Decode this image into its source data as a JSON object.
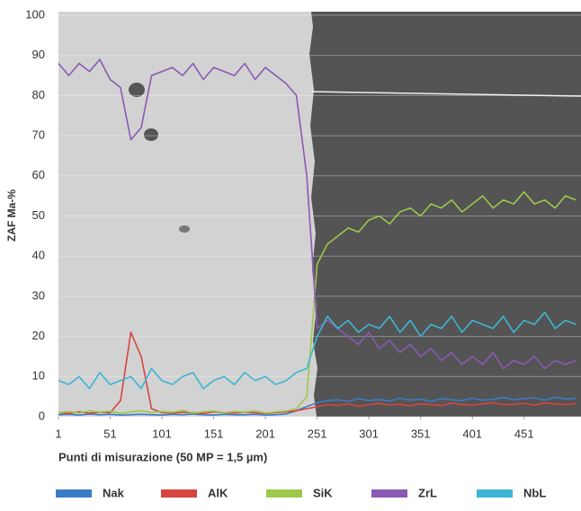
{
  "chart_data": {
    "type": "line",
    "x_label": "Punti di misurazione (50 MP = 1,5 µm)",
    "y_label": "ZAF Ma-%",
    "x": [
      1,
      11,
      21,
      31,
      41,
      51,
      61,
      71,
      81,
      91,
      101,
      111,
      121,
      131,
      141,
      151,
      161,
      171,
      181,
      191,
      201,
      211,
      221,
      231,
      241,
      251,
      261,
      271,
      281,
      291,
      301,
      311,
      321,
      331,
      341,
      351,
      361,
      371,
      381,
      391,
      401,
      411,
      421,
      431,
      441,
      451,
      461,
      471,
      481,
      491,
      501
    ],
    "xlim": [
      1,
      506
    ],
    "xticks": [
      1,
      51,
      101,
      151,
      201,
      251,
      301,
      351,
      401,
      451
    ],
    "ylim": [
      0,
      100
    ],
    "yticks": [
      0,
      10,
      20,
      30,
      40,
      50,
      60,
      70,
      80,
      90,
      100
    ],
    "grid": true,
    "legend": "bottom",
    "series": [
      {
        "name": "Nak",
        "color": "#3b7cc6",
        "values": [
          0.5,
          0.6,
          0.4,
          0.7,
          0.5,
          0.6,
          0.4,
          0.5,
          0.6,
          0.5,
          0.4,
          0.6,
          0.5,
          0.7,
          0.5,
          0.4,
          0.6,
          0.5,
          0.5,
          0.6,
          0.4,
          0.5,
          0.7,
          1.5,
          2.5,
          3.5,
          4,
          4.2,
          3.8,
          4.5,
          4,
          4.3,
          3.9,
          4.6,
          4.1,
          4.4,
          3.8,
          4.5,
          4.2,
          4,
          4.6,
          4.1,
          4.3,
          4.8,
          4.2,
          4.5,
          4.7,
          4.1,
          4.9,
          4.4,
          4.6
        ]
      },
      {
        "name": "AlK",
        "color": "#d8443e",
        "values": [
          1,
          0.8,
          1.2,
          0.9,
          1.1,
          1,
          4,
          21,
          15,
          2,
          1,
          0.9,
          1.1,
          1,
          0.8,
          1.2,
          1,
          0.9,
          1.1,
          1,
          0.8,
          1,
          1.2,
          1.5,
          2,
          2.5,
          3,
          2.8,
          3.2,
          2.6,
          3,
          3.3,
          2.9,
          3.1,
          2.7,
          3.2,
          3,
          2.8,
          3.4,
          3,
          2.9,
          3.2,
          3.5,
          3,
          3.1,
          3.3,
          2.9,
          3.4,
          3.2,
          3,
          3.3
        ]
      },
      {
        "name": "SiK",
        "color": "#9dc84a",
        "values": [
          1,
          1.3,
          0.9,
          1.5,
          1.1,
          1.4,
          0.8,
          1.2,
          1.5,
          1,
          1.3,
          1.1,
          1.6,
          0.9,
          1.2,
          1.4,
          1,
          1.3,
          1.1,
          1.5,
          0.9,
          1.2,
          1.4,
          2,
          5,
          38,
          43,
          45,
          47,
          46,
          49,
          50,
          48,
          51,
          52,
          50,
          53,
          52,
          54,
          51,
          53,
          55,
          52,
          54,
          53,
          56,
          53,
          54,
          52,
          55,
          54
        ]
      },
      {
        "name": "ZrL",
        "color": "#8a5ab4",
        "values": [
          88,
          85,
          88,
          86,
          89,
          84,
          82,
          69,
          72,
          85,
          86,
          87,
          85,
          88,
          84,
          87,
          86,
          85,
          88,
          84,
          87,
          85,
          83,
          80,
          60,
          22,
          24,
          22,
          20,
          18,
          21,
          17,
          19,
          16,
          18,
          15,
          17,
          14,
          16,
          13,
          15,
          13,
          16,
          12,
          14,
          13,
          15,
          12,
          14,
          13,
          14
        ]
      },
      {
        "name": "NbL",
        "color": "#3db6d3",
        "values": [
          9,
          8,
          10,
          7,
          11,
          8,
          9,
          10,
          7,
          12,
          9,
          8,
          10,
          11,
          7,
          9,
          10,
          8,
          11,
          9,
          10,
          8,
          9,
          11,
          12,
          20,
          25,
          22,
          24,
          21,
          23,
          22,
          25,
          21,
          24,
          20,
          23,
          22,
          25,
          21,
          24,
          23,
          22,
          25,
          21,
          24,
          23,
          26,
          22,
          24,
          23
        ]
      }
    ]
  }
}
